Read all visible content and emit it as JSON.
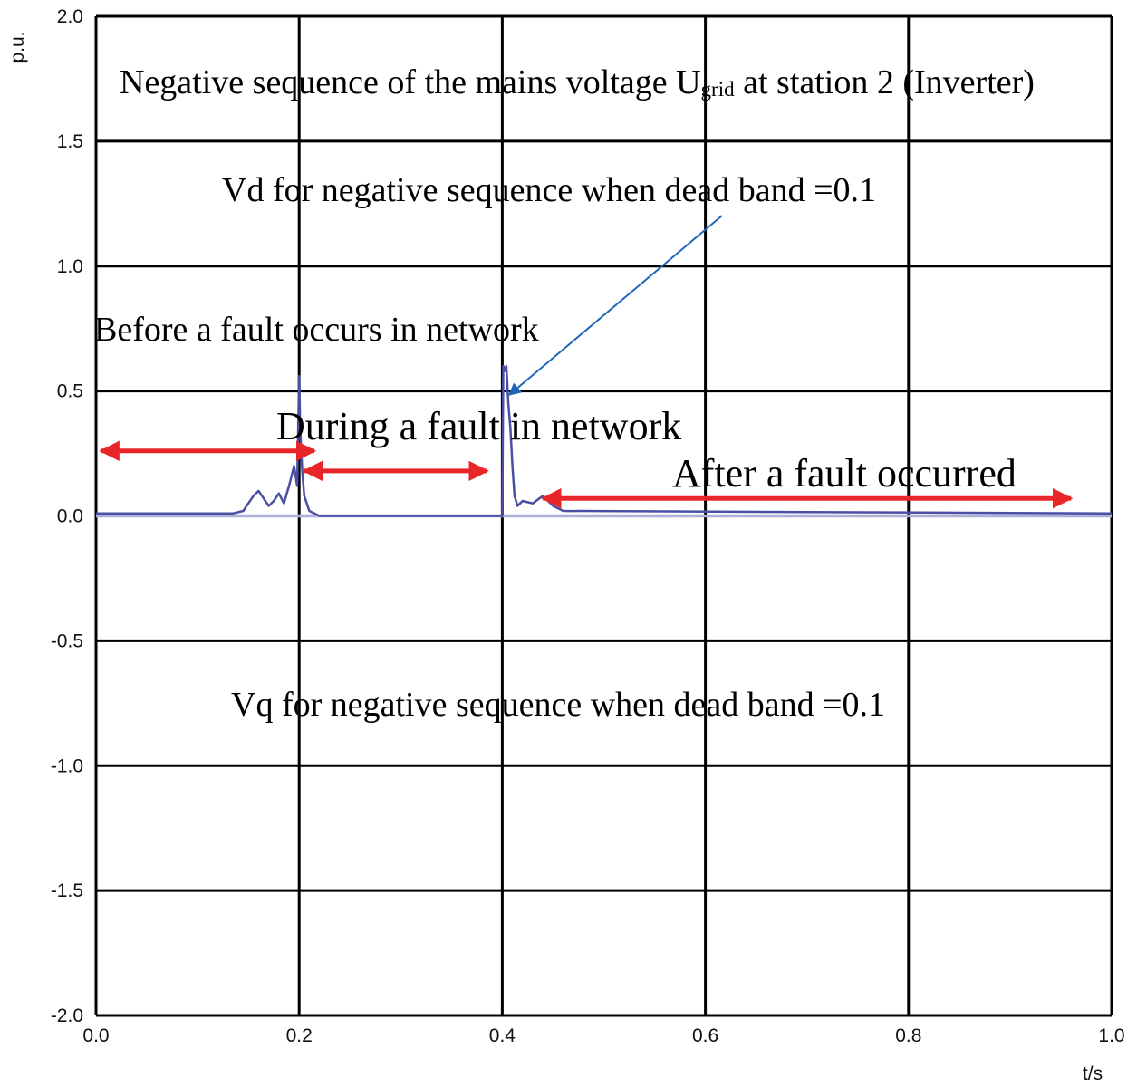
{
  "chart_data": {
    "type": "line",
    "title": {
      "prefix": "Negative sequence of the mains voltage U",
      "subscript": "grid",
      "suffix": " at station 2 (Inverter)"
    },
    "xlabel": "t/s",
    "ylabel": "p.u.",
    "xlim": [
      0,
      1.0
    ],
    "ylim": [
      -2.0,
      2.0
    ],
    "grid": true,
    "x_ticks": [
      "0.0",
      "0.2",
      "0.4",
      "0.6",
      "0.8",
      "1.0"
    ],
    "y_ticks": [
      "2.0",
      "1.5",
      "1.0",
      "0.5",
      "0.0",
      "-0.5",
      "-1.0",
      "-1.5",
      "-2.0"
    ],
    "series": [
      {
        "name": "Vd for negative sequence when dead band =0.1",
        "color": "#4a4fa3",
        "x": [
          0.0,
          0.135,
          0.145,
          0.15,
          0.155,
          0.16,
          0.165,
          0.17,
          0.175,
          0.18,
          0.185,
          0.19,
          0.195,
          0.198,
          0.2,
          0.201,
          0.203,
          0.205,
          0.21,
          0.215,
          0.22,
          0.4,
          0.401,
          0.403,
          0.404,
          0.406,
          0.408,
          0.41,
          0.412,
          0.415,
          0.42,
          0.43,
          0.44,
          0.45,
          0.46,
          1.0
        ],
        "y": [
          0.01,
          0.01,
          0.02,
          0.05,
          0.08,
          0.1,
          0.07,
          0.04,
          0.06,
          0.09,
          0.05,
          0.12,
          0.2,
          0.12,
          0.56,
          0.35,
          0.18,
          0.08,
          0.02,
          0.01,
          0.0,
          0.0,
          0.6,
          0.58,
          0.6,
          0.45,
          0.35,
          0.2,
          0.08,
          0.04,
          0.06,
          0.05,
          0.08,
          0.04,
          0.02,
          0.01
        ]
      },
      {
        "name": "Vq for negative sequence when dead band =0.1",
        "color": "#aeb0d8",
        "x": [
          0.0,
          1.0
        ],
        "y": [
          0.0,
          0.0
        ]
      }
    ],
    "annotations": {
      "vd_label": "Vd for negative sequence when dead band =0.1",
      "vq_label": "Vq for negative sequence when dead band =0.1",
      "before": "Before a fault occurs in network",
      "during": "During a fault in network",
      "after": "After a fault occurred"
    },
    "periods": [
      {
        "name": "before",
        "t_start": 0.0,
        "t_end": 0.2
      },
      {
        "name": "during",
        "t_start": 0.2,
        "t_end": 0.4
      },
      {
        "name": "after",
        "t_start": 0.4,
        "t_end": 0.96
      }
    ],
    "arrow_color": "#e8262a",
    "pointer_color": "#2266b8"
  }
}
